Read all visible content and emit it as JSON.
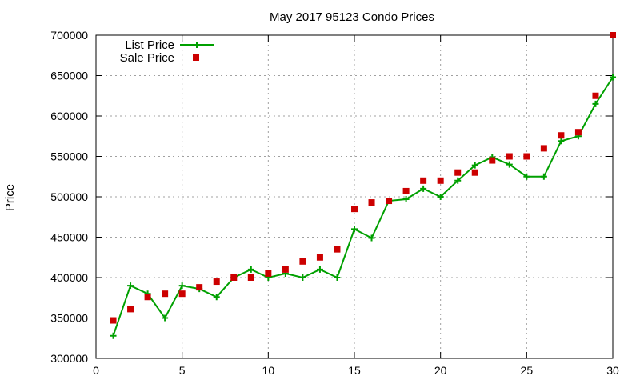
{
  "chart_data": {
    "type": "line",
    "title": "May 2017 95123 Condo Prices",
    "xlabel": "",
    "ylabel": "Price",
    "xlim": [
      0,
      30
    ],
    "ylim": [
      300000,
      700000
    ],
    "xticks": [
      0,
      5,
      10,
      15,
      20,
      25,
      30
    ],
    "yticks": [
      300000,
      350000,
      400000,
      450000,
      500000,
      550000,
      600000,
      650000,
      700000
    ],
    "grid": true,
    "legend_position": "top-left",
    "series": [
      {
        "name": "List Price",
        "style": "line-plus",
        "color": "#00a000",
        "x": [
          1,
          2,
          3,
          4,
          5,
          6,
          7,
          8,
          9,
          10,
          11,
          12,
          13,
          14,
          15,
          16,
          17,
          18,
          19,
          20,
          21,
          22,
          23,
          24,
          25,
          26,
          27,
          28,
          29,
          30
        ],
        "y": [
          328000,
          390000,
          380000,
          350000,
          390000,
          386000,
          376000,
          400000,
          410000,
          400000,
          405000,
          400000,
          410000,
          400000,
          460000,
          449000,
          495000,
          497000,
          510000,
          500000,
          520000,
          539000,
          549000,
          540000,
          525000,
          525000,
          569000,
          575000,
          615000,
          648000
        ]
      },
      {
        "name": "Sale Price",
        "style": "points-square",
        "color": "#cc0000",
        "x": [
          1,
          2,
          3,
          4,
          5,
          6,
          7,
          8,
          9,
          10,
          11,
          12,
          13,
          14,
          15,
          16,
          17,
          18,
          19,
          20,
          21,
          22,
          23,
          24,
          25,
          26,
          27,
          28,
          29,
          30
        ],
        "y": [
          347000,
          361000,
          376000,
          380000,
          380000,
          388000,
          395000,
          400000,
          400000,
          405000,
          410000,
          420000,
          425000,
          435000,
          485000,
          493000,
          495000,
          507000,
          520000,
          520000,
          530000,
          530000,
          545000,
          550000,
          550000,
          560000,
          576000,
          580000,
          625000,
          700000
        ]
      }
    ]
  }
}
